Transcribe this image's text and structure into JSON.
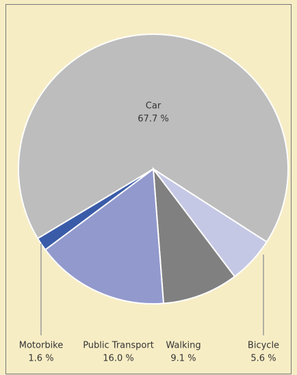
{
  "chart_data": {
    "type": "pie",
    "categories": [
      "Car",
      "Bicycle",
      "Walking",
      "Public Transport",
      "Motorbike"
    ],
    "values": [
      67.7,
      5.6,
      9.1,
      16.0,
      1.6
    ],
    "value_labels": [
      "67.7 %",
      "5.6 %",
      "9.1 %",
      "16.0 %",
      "1.6 %"
    ],
    "colors": [
      "#bdbdbd",
      "#c5c8e4",
      "#808080",
      "#9299cc",
      "#3a5ba8"
    ]
  }
}
